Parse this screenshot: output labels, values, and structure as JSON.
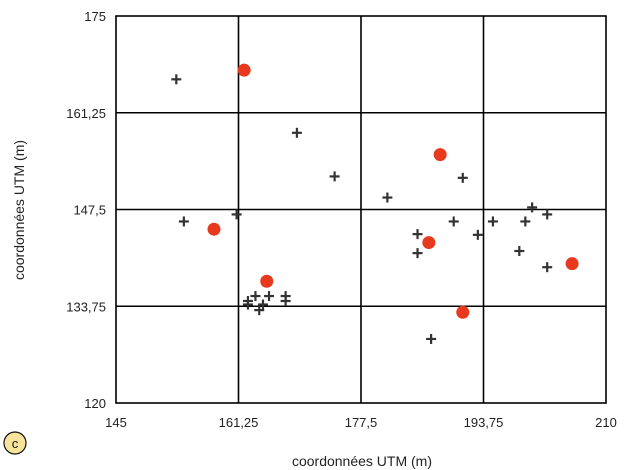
{
  "panel_label": "c",
  "colors": {
    "cross": "#333333",
    "circle": "#e8391f",
    "badge": "#f7e39a",
    "grid": "#000000"
  },
  "chart_data": {
    "type": "scatter",
    "title": "",
    "xlabel": "coordonnées UTM (m)",
    "ylabel": "coordonnées UTM (m)",
    "xlim": [
      145,
      210
    ],
    "ylim": [
      120,
      175
    ],
    "x_ticks": [
      "145",
      "161,25",
      "177,5",
      "193,75",
      "210"
    ],
    "y_ticks": [
      "120",
      "133,75",
      "147,5",
      "161,25",
      "175"
    ],
    "x_tick_values": [
      145,
      161.25,
      177.5,
      193.75,
      210
    ],
    "y_tick_values": [
      120,
      133.75,
      147.5,
      161.25,
      175
    ],
    "grid": true,
    "legend": "none",
    "series": [
      {
        "marker": "cross",
        "points": [
          [
            153,
            166
          ],
          [
            169,
            158.4
          ],
          [
            174,
            152.2
          ],
          [
            154,
            145.8
          ],
          [
            161,
            146.8
          ],
          [
            181,
            149.2
          ],
          [
            185,
            141.3
          ],
          [
            185,
            144
          ],
          [
            189.8,
            145.8
          ],
          [
            191,
            152
          ],
          [
            193,
            143.9
          ],
          [
            195,
            145.8
          ],
          [
            198.5,
            141.6
          ],
          [
            199.3,
            145.8
          ],
          [
            200.2,
            147.8
          ],
          [
            202.2,
            146.8
          ],
          [
            202.2,
            139.3
          ],
          [
            162.5,
            134.5
          ],
          [
            163.5,
            135.2
          ],
          [
            164.5,
            134
          ],
          [
            165.3,
            135.2
          ],
          [
            167.5,
            135.2
          ],
          [
            167.5,
            134.5
          ],
          [
            162.5,
            134
          ],
          [
            164,
            133.2
          ],
          [
            186.8,
            129.1
          ]
        ]
      },
      {
        "marker": "circle",
        "points": [
          [
            162,
            167.3
          ],
          [
            158,
            144.7
          ],
          [
            165,
            137.3
          ],
          [
            188,
            155.3
          ],
          [
            186.5,
            142.8
          ],
          [
            191,
            132.9
          ],
          [
            205.5,
            139.8
          ]
        ]
      }
    ]
  }
}
